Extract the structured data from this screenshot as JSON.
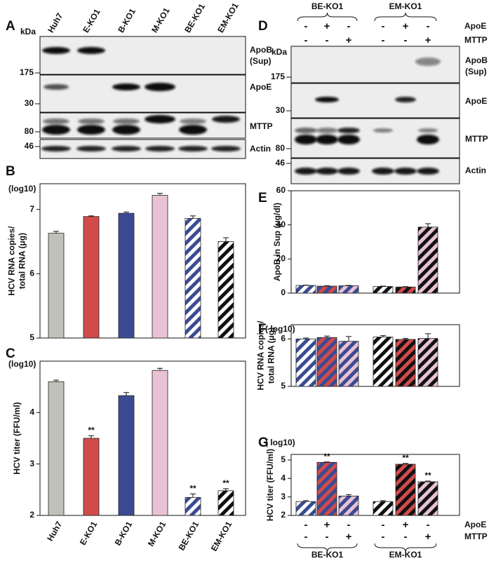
{
  "panel_a": {
    "letter": "A",
    "lanes": [
      "Huh7",
      "E-KO1",
      "B-KO1",
      "M-KO1",
      "BE-KO1",
      "EM-KO1"
    ],
    "kda": "kDa",
    "markers": [
      175,
      30,
      80,
      46
    ],
    "bands": [
      [
        "ApoB",
        "(Sup)"
      ],
      [
        "ApoE"
      ],
      [
        "MTTP"
      ],
      [
        "Actin"
      ]
    ]
  },
  "panel_d": {
    "letter": "D",
    "groups": [
      "BE-KO1",
      "EM-KO1"
    ],
    "treatments": [
      {
        "label": "ApoE",
        "signs": [
          "-",
          "+",
          "-",
          "-",
          "+",
          "-"
        ]
      },
      {
        "label": "MTTP",
        "signs": [
          "-",
          "-",
          "+",
          "-",
          "-",
          "+"
        ]
      }
    ],
    "kda": "kDa",
    "markers": [
      175,
      30,
      80,
      46
    ],
    "bands": [
      [
        "ApoB",
        "(Sup)"
      ],
      [
        "ApoE"
      ],
      [
        "MTTP"
      ],
      [
        "Actin"
      ]
    ]
  },
  "chart_data": [
    {
      "type": "bar",
      "panel": "B",
      "unit": "(log10)",
      "ylabel": [
        "HCV RNA copies/",
        "total RNA (μg)"
      ],
      "values": [
        6.63,
        6.89,
        6.94,
        7.22,
        6.86,
        6.5
      ],
      "errors": [
        0.03,
        0.01,
        0.02,
        0.03,
        0.04,
        0.06
      ],
      "colors": [
        "#c0c1b8",
        "#d24b4b",
        "#3b4b93",
        "#e8c2d4",
        "#ffffff",
        "#ffffff"
      ],
      "hatch_colors": [
        null,
        null,
        null,
        null,
        "#3b4b93",
        "#111111"
      ],
      "ylim": [
        5,
        7.4
      ],
      "yticks": [
        5,
        6,
        7
      ]
    },
    {
      "type": "bar",
      "panel": "C",
      "unit": "(log10)",
      "ylabel": [
        "HCV titer (FFU/ml)"
      ],
      "categories": [
        "Huh7",
        "E-KO1",
        "B-KO1",
        "M-KO1",
        "BE-KO1",
        "EM-KO1"
      ],
      "values": [
        4.6,
        3.5,
        4.33,
        4.82,
        2.35,
        2.48
      ],
      "errors": [
        0.03,
        0.05,
        0.06,
        0.04,
        0.07,
        0.04
      ],
      "significance": [
        null,
        "**",
        null,
        null,
        "**",
        "**"
      ],
      "colors": [
        "#c0c1b8",
        "#d24b4b",
        "#3b4b93",
        "#e8c2d4",
        "#ffffff",
        "#ffffff"
      ],
      "hatch_colors": [
        null,
        null,
        null,
        null,
        "#3b4b93",
        "#111111"
      ],
      "ylim": [
        2,
        5
      ],
      "yticks": [
        2,
        3,
        4
      ]
    },
    {
      "type": "bar",
      "panel": "E",
      "ylabel": [
        "ApoB in Sup (μg/dl)"
      ],
      "values": [
        4.5,
        4.1,
        4.3,
        3.9,
        3.6,
        38.7
      ],
      "errors": [
        0.2,
        0.2,
        0.2,
        0.2,
        0.2,
        2
      ],
      "colors": [
        "#ffffff",
        "#d24b4b",
        "#e8c2d4",
        "#ffffff",
        "#d24b4b",
        "#e8c2d4"
      ],
      "hatch_colors": [
        "#3b4b93",
        "#3b4b93",
        "#3b4b93",
        "#111111",
        "#111111",
        "#111111"
      ],
      "ylim": [
        0,
        60
      ],
      "yticks": [
        0,
        20,
        40,
        60
      ]
    },
    {
      "type": "bar",
      "panel": "F",
      "unit": "( log10)",
      "ylabel": [
        "HCV RNA copies/",
        "total RNA (μg)"
      ],
      "values": [
        6.0,
        6.03,
        5.95,
        6.04,
        5.99,
        6.01
      ],
      "errors": [
        0.02,
        0.03,
        0.1,
        0.03,
        0.02,
        0.1
      ],
      "colors": [
        "#ffffff",
        "#d24b4b",
        "#e8c2d4",
        "#ffffff",
        "#d24b4b",
        "#e8c2d4"
      ],
      "hatch_colors": [
        "#3b4b93",
        "#3b4b93",
        "#3b4b93",
        "#111111",
        "#111111",
        "#111111"
      ],
      "ylim": [
        5,
        6.3
      ],
      "yticks": [
        5,
        6
      ]
    },
    {
      "type": "bar",
      "panel": "G",
      "unit": "( log10)",
      "ylabel": [
        "HCV titer (FFU/ml)"
      ],
      "values": [
        2.75,
        4.87,
        3.05,
        2.75,
        4.77,
        3.82
      ],
      "errors": [
        0.05,
        0.02,
        0.08,
        0.05,
        0.04,
        0.04
      ],
      "significance": [
        null,
        "**",
        null,
        null,
        "**",
        "**"
      ],
      "colors": [
        "#ffffff",
        "#d24b4b",
        "#e8c2d4",
        "#ffffff",
        "#d24b4b",
        "#e8c2d4"
      ],
      "hatch_colors": [
        "#3b4b93",
        "#3b4b93",
        "#3b4b93",
        "#111111",
        "#111111",
        "#111111"
      ],
      "ylim": [
        2,
        5.3
      ],
      "yticks": [
        2,
        3,
        4,
        5
      ],
      "groups": [
        "BE-KO1",
        "EM-KO1"
      ],
      "treatments": [
        {
          "label": "ApoE",
          "signs": [
            "-",
            "+",
            "-",
            "-",
            "+",
            "-"
          ]
        },
        {
          "label": "MTTP",
          "signs": [
            "-",
            "-",
            "+",
            "-",
            "-",
            "+"
          ]
        }
      ]
    }
  ]
}
